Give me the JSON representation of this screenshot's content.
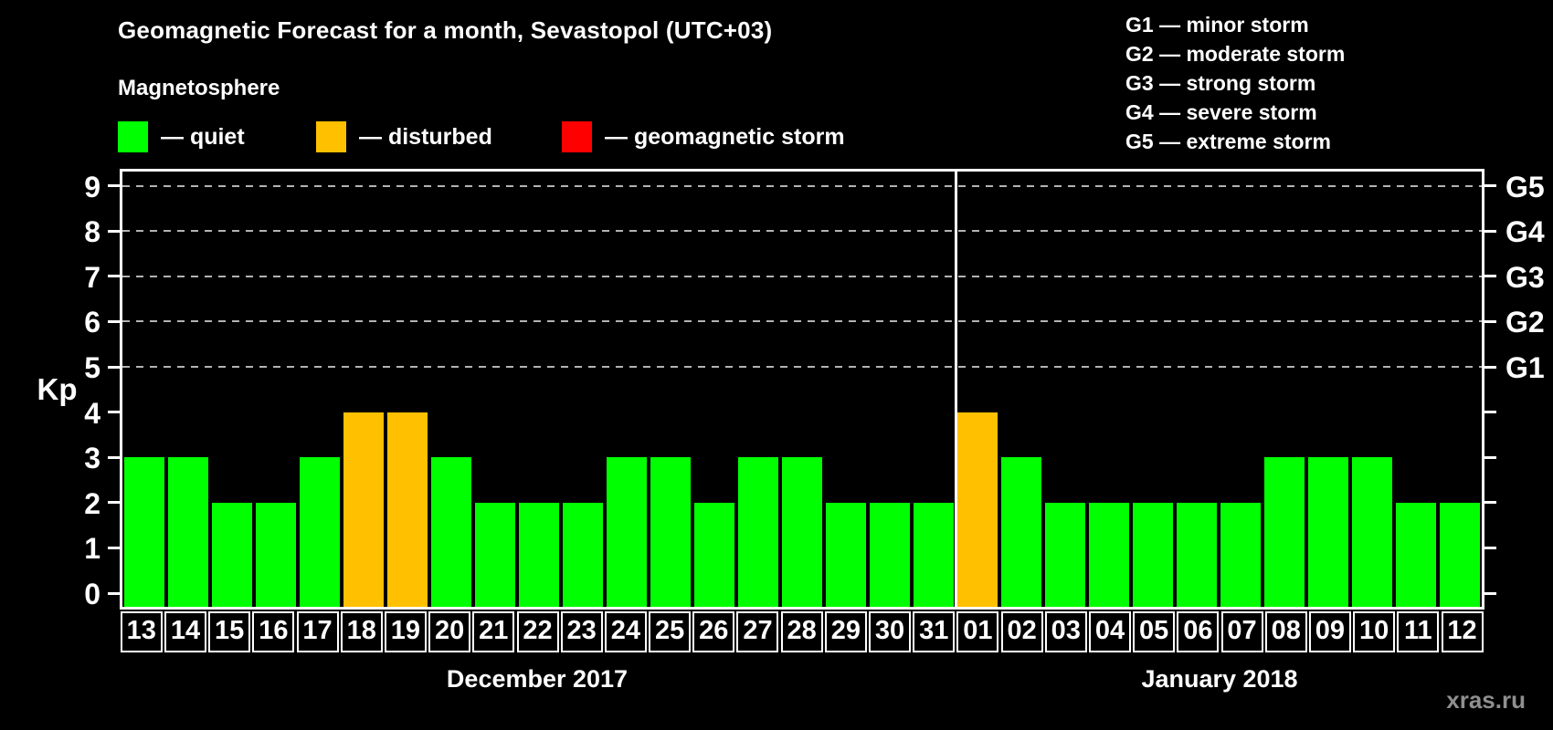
{
  "title": "Geomagnetic Forecast for a month, Sevastopol (UTC+03)",
  "subtitle": "Magnetosphere",
  "legend": {
    "quiet": "— quiet",
    "disturbed": "— disturbed",
    "storm": "— geomagnetic storm"
  },
  "g_legend": [
    "G1 — minor storm",
    "G2 — moderate storm",
    "G3 — strong storm",
    "G4 — severe storm",
    "G5 — extreme storm"
  ],
  "watermark": "xras.ru",
  "colors": {
    "quiet": "#00ff00",
    "disturbed": "#ffc000",
    "storm": "#ff0000",
    "grid": "#b3b3b3",
    "frame": "#ffffff",
    "background": "#000000",
    "watermark": "#8f8f8f"
  },
  "chart_data": {
    "type": "bar",
    "title": "Geomagnetic Forecast for a month, Sevastopol (UTC+03)",
    "ylabel": "Kp",
    "ylim": [
      0,
      9
    ],
    "y_ticks": [
      0,
      1,
      2,
      3,
      4,
      5,
      6,
      7,
      8,
      9
    ],
    "dashed_gridlines_at_kp": [
      5,
      6,
      7,
      8,
      9
    ],
    "right_axis_labels": [
      {
        "kp": 5,
        "label": "G1"
      },
      {
        "kp": 6,
        "label": "G2"
      },
      {
        "kp": 7,
        "label": "G3"
      },
      {
        "kp": 8,
        "label": "G4"
      },
      {
        "kp": 9,
        "label": "G5"
      }
    ],
    "status_colors": {
      "quiet": "#00ff00",
      "disturbed": "#ffc000",
      "storm": "#ff0000"
    },
    "months": [
      {
        "label": "December 2017",
        "start_index": 0,
        "days": 19
      },
      {
        "label": "January 2018",
        "start_index": 19,
        "days": 12
      }
    ],
    "bars": [
      {
        "month": "December 2017",
        "day": "13",
        "kp": 3,
        "status": "quiet"
      },
      {
        "month": "December 2017",
        "day": "14",
        "kp": 3,
        "status": "quiet"
      },
      {
        "month": "December 2017",
        "day": "15",
        "kp": 2,
        "status": "quiet"
      },
      {
        "month": "December 2017",
        "day": "16",
        "kp": 2,
        "status": "quiet"
      },
      {
        "month": "December 2017",
        "day": "17",
        "kp": 3,
        "status": "quiet"
      },
      {
        "month": "December 2017",
        "day": "18",
        "kp": 4,
        "status": "disturbed"
      },
      {
        "month": "December 2017",
        "day": "19",
        "kp": 4,
        "status": "disturbed"
      },
      {
        "month": "December 2017",
        "day": "20",
        "kp": 3,
        "status": "quiet"
      },
      {
        "month": "December 2017",
        "day": "21",
        "kp": 2,
        "status": "quiet"
      },
      {
        "month": "December 2017",
        "day": "22",
        "kp": 2,
        "status": "quiet"
      },
      {
        "month": "December 2017",
        "day": "23",
        "kp": 2,
        "status": "quiet"
      },
      {
        "month": "December 2017",
        "day": "24",
        "kp": 3,
        "status": "quiet"
      },
      {
        "month": "December 2017",
        "day": "25",
        "kp": 3,
        "status": "quiet"
      },
      {
        "month": "December 2017",
        "day": "26",
        "kp": 2,
        "status": "quiet"
      },
      {
        "month": "December 2017",
        "day": "27",
        "kp": 3,
        "status": "quiet"
      },
      {
        "month": "December 2017",
        "day": "28",
        "kp": 3,
        "status": "quiet"
      },
      {
        "month": "December 2017",
        "day": "29",
        "kp": 2,
        "status": "quiet"
      },
      {
        "month": "December 2017",
        "day": "30",
        "kp": 2,
        "status": "quiet"
      },
      {
        "month": "December 2017",
        "day": "31",
        "kp": 2,
        "status": "quiet"
      },
      {
        "month": "January 2018",
        "day": "01",
        "kp": 4,
        "status": "disturbed"
      },
      {
        "month": "January 2018",
        "day": "02",
        "kp": 3,
        "status": "quiet"
      },
      {
        "month": "January 2018",
        "day": "03",
        "kp": 2,
        "status": "quiet"
      },
      {
        "month": "January 2018",
        "day": "04",
        "kp": 2,
        "status": "quiet"
      },
      {
        "month": "January 2018",
        "day": "05",
        "kp": 2,
        "status": "quiet"
      },
      {
        "month": "January 2018",
        "day": "06",
        "kp": 2,
        "status": "quiet"
      },
      {
        "month": "January 2018",
        "day": "07",
        "kp": 2,
        "status": "quiet"
      },
      {
        "month": "January 2018",
        "day": "08",
        "kp": 3,
        "status": "quiet"
      },
      {
        "month": "January 2018",
        "day": "09",
        "kp": 3,
        "status": "quiet"
      },
      {
        "month": "January 2018",
        "day": "10",
        "kp": 3,
        "status": "quiet"
      },
      {
        "month": "January 2018",
        "day": "11",
        "kp": 2,
        "status": "quiet"
      },
      {
        "month": "January 2018",
        "day": "12",
        "kp": 2,
        "status": "quiet"
      }
    ]
  }
}
